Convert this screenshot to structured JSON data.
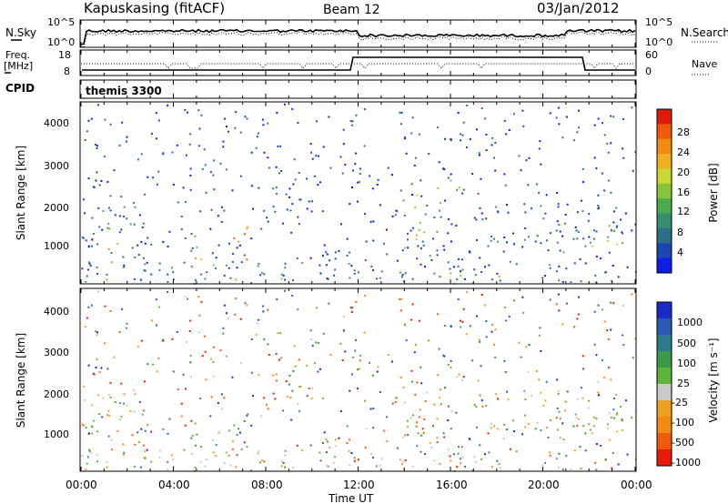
{
  "header": {
    "title": "Kapuskasing (fitACF)",
    "beam": "Beam 12",
    "date": "03/Jan/2012"
  },
  "noise_panel": {
    "left_label": "N.Sky",
    "right_label": "N.Search",
    "left_ticks": [
      "10^5",
      "10^0"
    ],
    "right_ticks": [
      "10^5",
      "10^0"
    ]
  },
  "freq_panel": {
    "left_label_1": "Freq.",
    "left_label_2": "[MHz]",
    "left_ticks": [
      "18",
      "8"
    ],
    "right_label": "Nave",
    "right_ticks": [
      "60",
      "0"
    ],
    "cpid_label": "CPID",
    "program": "themis 3300"
  },
  "x_axis": {
    "label": "Time UT",
    "ticks": [
      "00:00",
      "04:00",
      "08:00",
      "12:00",
      "16:00",
      "20:00",
      "00:00"
    ]
  },
  "power_panel": {
    "ylabel": "Slant Range [km]",
    "yticks": [
      "4000",
      "3000",
      "2000",
      "1000"
    ],
    "colorbar_label": "Power [dB]",
    "colorbar_ticks": [
      "28",
      "24",
      "20",
      "16",
      "12",
      "8",
      "4"
    ],
    "colors": [
      "#0a1ee6",
      "#1846b4",
      "#2e6e8c",
      "#3a8c6e",
      "#4caa4c",
      "#86c43a",
      "#c8d830",
      "#f0b020",
      "#f08a10",
      "#f05a08",
      "#e01a08"
    ]
  },
  "velocity_panel": {
    "ylabel": "Slant Range [km]",
    "yticks": [
      "4000",
      "3000",
      "2000",
      "1000"
    ],
    "colorbar_label": "Velocity [m s⁻¹]",
    "colorbar_ticks": [
      "1000",
      "500",
      "100",
      "25",
      "-25",
      "-100",
      "-500",
      "-1000"
    ],
    "colors": [
      "#1a2ac8",
      "#2a5ab4",
      "#2e7a8a",
      "#3a9a4a",
      "#5cb43a",
      "#c8c8c8",
      "#f0a020",
      "#f08a10",
      "#f05a08",
      "#e81a08"
    ]
  },
  "chart_data": {
    "type": "heatmap",
    "x_range_hours": [
      0,
      24
    ],
    "y_range_km": [
      180,
      4500
    ],
    "scatter_regions": [
      {
        "t0": 0.0,
        "t1": 1.6,
        "r0": 900,
        "r1": 2100,
        "pw": 0.35,
        "vel": 0.55
      },
      {
        "t0": 0.8,
        "t1": 2.8,
        "r0": 1500,
        "r1": 2400,
        "pw": 0.25,
        "vel": 0.55
      },
      {
        "t0": 0.4,
        "t1": 1.2,
        "r0": 800,
        "r1": 1300,
        "pw": 0.75,
        "vel": 0.35
      },
      {
        "t0": 6.5,
        "t1": 8.0,
        "r0": 700,
        "r1": 1700,
        "pw": 0.8,
        "vel": 0.4
      },
      {
        "t0": 4.5,
        "t1": 5.6,
        "r0": 700,
        "r1": 1600,
        "pw": 0.5,
        "vel": 0.4
      },
      {
        "t0": 13.8,
        "t1": 15.6,
        "r0": 800,
        "r1": 2300,
        "pw": 0.4,
        "vel": 0.7
      },
      {
        "t0": 15.2,
        "t1": 16.6,
        "r0": 2200,
        "r1": 2800,
        "pw": 0.4,
        "vel": 0.6
      },
      {
        "t0": 17.0,
        "t1": 24.0,
        "r0": 1100,
        "r1": 2100,
        "pw": 0.2,
        "vel": 0.55
      },
      {
        "t0": 20.6,
        "t1": 24.0,
        "r0": 900,
        "r1": 1600,
        "pw": 0.45,
        "vel": 0.5
      },
      {
        "t0": 0.0,
        "t1": 22.0,
        "r0": 180,
        "r1": 700,
        "pw": 0.35,
        "vel": 0.6
      }
    ]
  }
}
